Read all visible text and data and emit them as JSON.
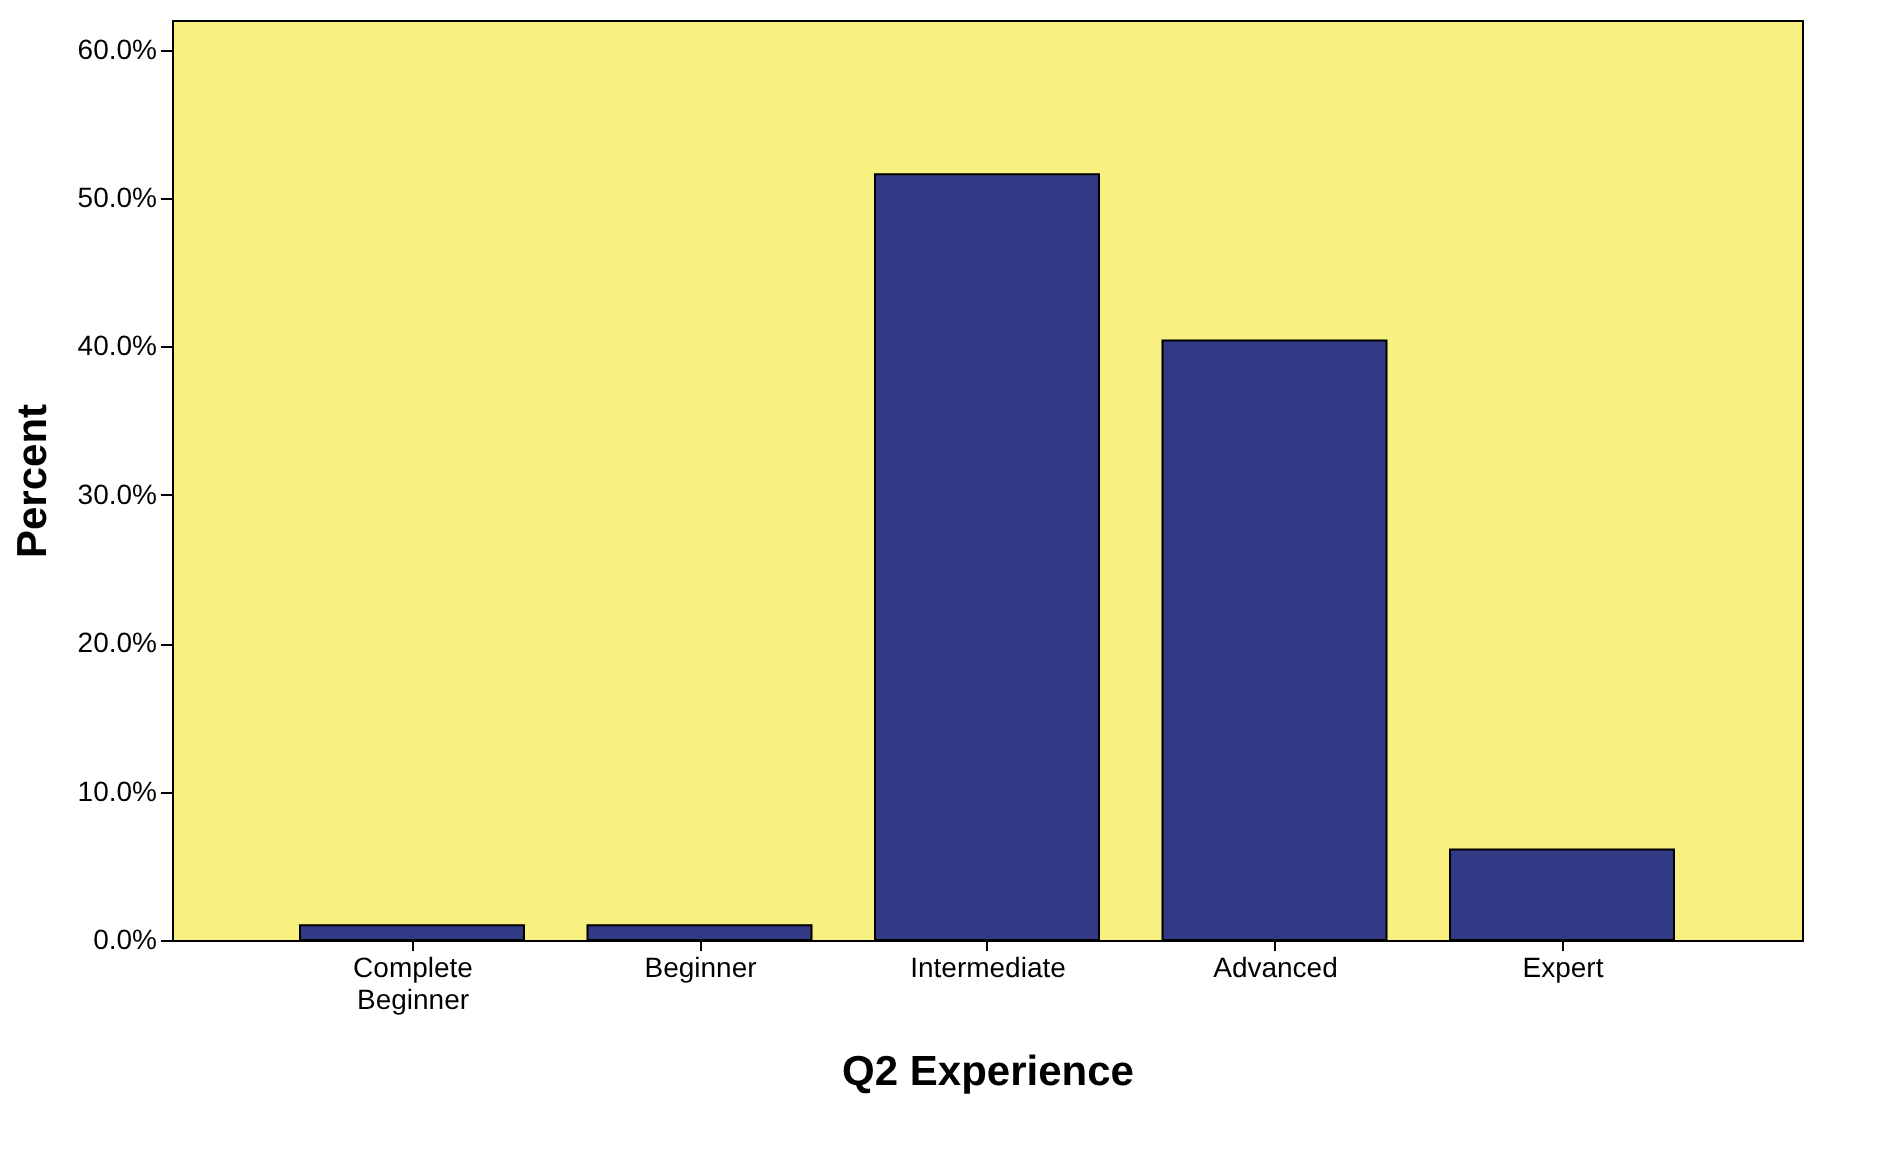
{
  "chart_data": {
    "type": "bar",
    "xlabel": "Q2 Experience",
    "ylabel": "Percent",
    "categories": [
      "Complete Beginner",
      "Beginner",
      "Intermediate",
      "Advanced",
      "Expert"
    ],
    "values": [
      1.0,
      1.0,
      51.6,
      40.4,
      6.1
    ],
    "color": "#333a85",
    "ylim": [
      0,
      62
    ],
    "yticks": [
      {
        "value": 0,
        "label": "0.0%"
      },
      {
        "value": 10,
        "label": "10.0%"
      },
      {
        "value": 20,
        "label": "20.0%"
      },
      {
        "value": 30,
        "label": "30.0%"
      },
      {
        "value": 40,
        "label": "40.0%"
      },
      {
        "value": 50,
        "label": "50.0%"
      },
      {
        "value": 60,
        "label": "60.0%"
      }
    ],
    "grid": false
  }
}
